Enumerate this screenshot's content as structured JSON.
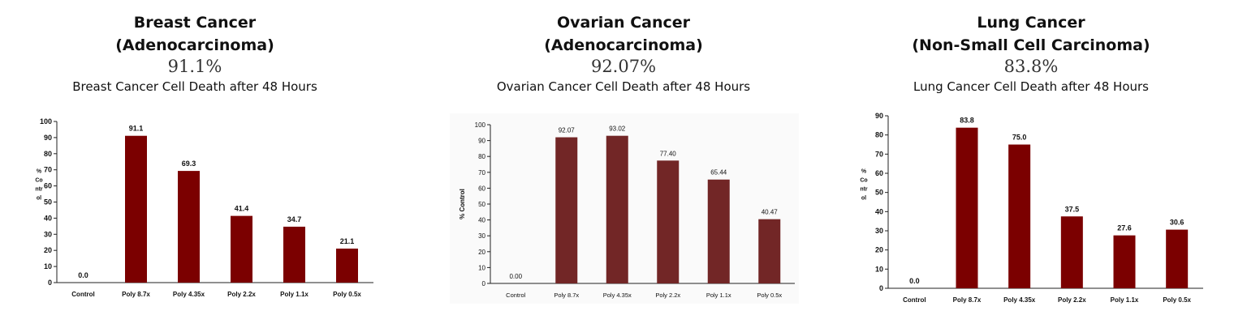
{
  "panels": [
    {
      "title_line1": "Breast Cancer",
      "title_line2": "(Adenocarcinoma)",
      "percent": "91.1%",
      "caption": "Breast Cancer Cell Death after 48 Hours"
    },
    {
      "title_line1": "Ovarian Cancer",
      "title_line2": "(Adenocarcinoma)",
      "percent": "92.07%",
      "caption": "Ovarian Cancer Cell Death after 48 Hours"
    },
    {
      "title_line1": "Lung Cancer",
      "title_line2": "(Non-Small Cell Carcinoma)",
      "percent": "83.8%",
      "caption": "Lung Cancer Cell Death after 48 Hours"
    }
  ],
  "chart_data": [
    {
      "type": "bar",
      "title": "",
      "xlabel": "",
      "ylabel": "% Control",
      "categories": [
        "Control",
        "Poly 8.7x",
        "Poly 4.35x",
        "Poly 2.2x",
        "Poly 1.1x",
        "Poly 0.5x"
      ],
      "values": [
        0.0,
        91.1,
        69.3,
        41.4,
        34.7,
        21.1
      ],
      "data_labels": [
        "0.0",
        "91.1",
        "69.3",
        "41.4",
        "34.7",
        "21.1"
      ],
      "ylim": [
        0,
        100
      ],
      "yticks": [
        0,
        10,
        20,
        30,
        40,
        50,
        60,
        70,
        80,
        90,
        100
      ],
      "bar_color": "#7b0000",
      "grid": false
    },
    {
      "type": "bar",
      "title": "",
      "xlabel": "",
      "ylabel": "% Control",
      "categories": [
        "Control",
        "Poly 8.7x",
        "Poly 4.35x",
        "Poly 2.2x",
        "Poly 1.1x",
        "Poly 0.5x"
      ],
      "values": [
        0.0,
        92.07,
        93.02,
        77.4,
        65.44,
        40.47
      ],
      "data_labels": [
        "0.00",
        "92.07",
        "93.02",
        "77.40",
        "65.44",
        "40.47"
      ],
      "ylim": [
        0,
        100
      ],
      "yticks": [
        0,
        10,
        20,
        30,
        40,
        50,
        60,
        70,
        80,
        90,
        100
      ],
      "bar_color": "#722626",
      "grid": false
    },
    {
      "type": "bar",
      "title": "",
      "xlabel": "",
      "ylabel": "% Control",
      "categories": [
        "Control",
        "Poly 8.7x",
        "Poly 4.35x",
        "Poly 2.2x",
        "Poly 1.1x",
        "Poly 0.5x"
      ],
      "values": [
        0.0,
        83.8,
        75.0,
        37.5,
        27.6,
        30.6
      ],
      "data_labels": [
        "0.0",
        "83.8",
        "75.0",
        "37.5",
        "27.6",
        "30.6"
      ],
      "ylim": [
        0,
        90
      ],
      "yticks": [
        0,
        10,
        20,
        30,
        40,
        50,
        60,
        70,
        80,
        90
      ],
      "bar_color": "#7b0000",
      "grid": false
    }
  ]
}
